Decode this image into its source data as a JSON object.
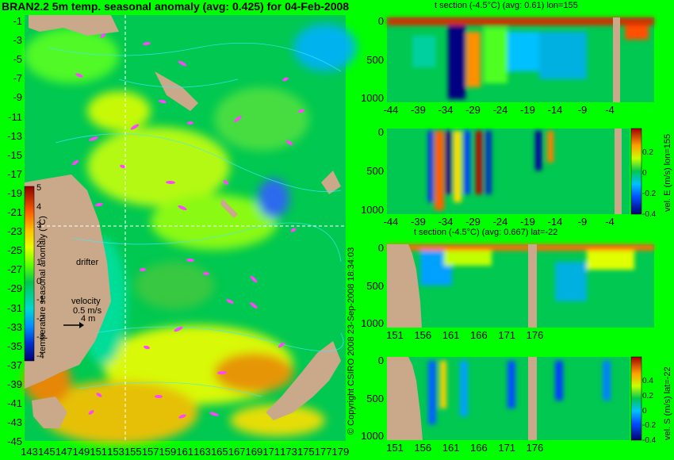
{
  "title": "BRAN2.2 5m temp. seasonal anomaly (avg: 0.425) for 04-Feb-2008",
  "copyright": "© Copyright CSIRO 2008 23-Sep-2008 18:34:03",
  "map": {
    "lat_labels": [
      "-1",
      "-3",
      "-5",
      "-7",
      "-9",
      "-11",
      "-13",
      "-15",
      "-17",
      "-19",
      "-21",
      "-23",
      "-25",
      "-27",
      "-29",
      "-31",
      "-33",
      "-35",
      "-37",
      "-39",
      "-41",
      "-43",
      "-45"
    ],
    "lon_labels": [
      "143",
      "145",
      "147",
      "149",
      "151",
      "153",
      "155",
      "157",
      "159",
      "161",
      "163",
      "165",
      "167",
      "169",
      "171",
      "173",
      "175",
      "177",
      "179"
    ],
    "colorbar": {
      "label": "temperature seasonal anomaly (°C)",
      "ticks": [
        "5",
        "4",
        "3",
        "2",
        "1",
        "0",
        "-1",
        "-2",
        "-3",
        "-4"
      ],
      "colors": [
        "#000070",
        "#0020c0",
        "#0070ff",
        "#00c0ff",
        "#00ff90",
        "#60ff00",
        "#e0ff00",
        "#ffc000",
        "#ff6000",
        "#c00000",
        "#700000"
      ]
    },
    "drifter_label": "drifter",
    "velocity_label": "velocity",
    "velocity_value": "0.5 m/s",
    "velocity_value2": "4 m"
  },
  "panels": [
    {
      "title": "t section (-4.5°C) (avg: 0.61) lon=155",
      "xticks": [
        "-44",
        "-39",
        "-34",
        "-29",
        "-24",
        "-19",
        "-14",
        "-9",
        "-4"
      ],
      "yticks": [
        "0",
        "500",
        "1000"
      ],
      "cbar_label": ""
    },
    {
      "title": "",
      "xticks": [
        "-44",
        "-39",
        "-34",
        "-29",
        "-24",
        "-19",
        "-14",
        "-9",
        "-4"
      ],
      "yticks": [
        "0",
        "500",
        "1000"
      ],
      "cbar_label": "vel. E (m/s) lon=155",
      "cbar_ticks": [
        "0.2",
        "0",
        "-0.2",
        "-0.4"
      ]
    },
    {
      "title": "t section (-4.5°C) (avg: 0.667) lat=-22",
      "xticks": [
        "151",
        "156",
        "161",
        "166",
        "171",
        "176"
      ],
      "yticks": [
        "0",
        "500",
        "1000"
      ],
      "cbar_label": ""
    },
    {
      "title": "",
      "xticks": [
        "151",
        "156",
        "161",
        "166",
        "171",
        "176"
      ],
      "yticks": [
        "0",
        "500",
        "1000"
      ],
      "cbar_label": "vel. S (m/s) lat=-22",
      "cbar_ticks": [
        "0.4",
        "0.2",
        "0",
        "-0.2",
        "-0.4"
      ]
    }
  ],
  "colors": {
    "land": "#c9a98a",
    "ocean_base": "#00c850",
    "map_bg": "#00ff00",
    "drifter": "#ff44ff"
  }
}
